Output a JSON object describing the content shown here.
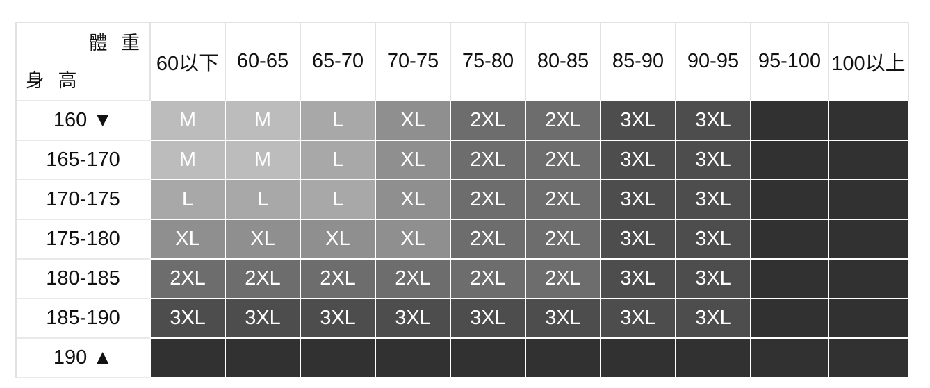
{
  "chart_data": {
    "type": "table",
    "weight_axis_label": "體 重",
    "height_axis_label": "身 高",
    "weight_columns": [
      "60以下",
      "60-65",
      "65-70",
      "70-75",
      "75-80",
      "80-85",
      "85-90",
      "90-95",
      "95-100",
      "100以上"
    ],
    "height_rows": [
      "160 ▼",
      "165-170",
      "170-175",
      "175-180",
      "180-185",
      "185-190",
      "190 ▲"
    ],
    "values": [
      [
        "M",
        "M",
        "L",
        "XL",
        "2XL",
        "2XL",
        "3XL",
        "3XL",
        "",
        ""
      ],
      [
        "M",
        "M",
        "L",
        "XL",
        "2XL",
        "2XL",
        "3XL",
        "3XL",
        "",
        ""
      ],
      [
        "L",
        "L",
        "L",
        "XL",
        "2XL",
        "2XL",
        "3XL",
        "3XL",
        "",
        ""
      ],
      [
        "XL",
        "XL",
        "XL",
        "XL",
        "2XL",
        "2XL",
        "3XL",
        "3XL",
        "",
        ""
      ],
      [
        "2XL",
        "2XL",
        "2XL",
        "2XL",
        "2XL",
        "2XL",
        "3XL",
        "3XL",
        "",
        ""
      ],
      [
        "3XL",
        "3XL",
        "3XL",
        "3XL",
        "3XL",
        "3XL",
        "3XL",
        "3XL",
        "",
        ""
      ],
      [
        "",
        "",
        "",
        "",
        "",
        "",
        "",
        "",
        "",
        ""
      ]
    ],
    "size_colors": {
      "M": "#bcbcbc",
      "L": "#a8a8a8",
      "XL": "#8f8f8f",
      "2XL": "#6d6d6d",
      "3XL": "#4d4d4d"
    },
    "empty_cell_color": "#313131",
    "header_text_color": "#111111",
    "cell_text_color": "#ffffff"
  }
}
